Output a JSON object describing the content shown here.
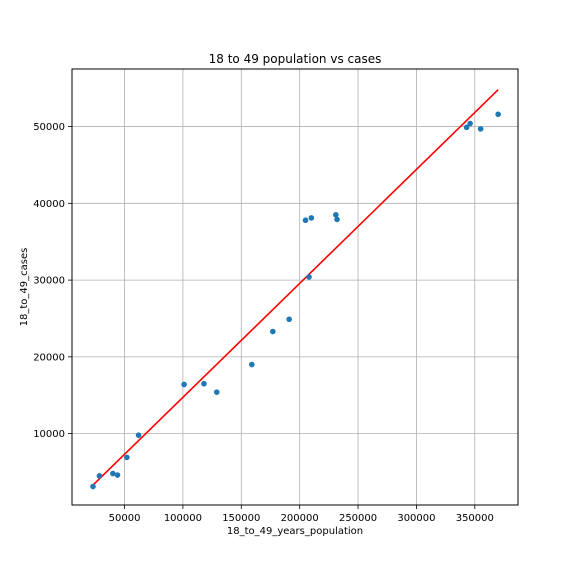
{
  "chart_data": {
    "type": "scatter",
    "title": "18 to 49 population vs cases",
    "xlabel": "18_to_49_years_population",
    "ylabel": "18_to_49_cases",
    "xlim": [
      5000,
      387000
    ],
    "ylim": [
      700,
      57500
    ],
    "xticks": [
      50000,
      100000,
      150000,
      200000,
      250000,
      300000,
      350000
    ],
    "yticks": [
      10000,
      20000,
      30000,
      40000,
      50000
    ],
    "grid": true,
    "point_color": "#1f77b4",
    "line_color": "#ff0000",
    "points": [
      {
        "x": 23000,
        "y": 3100
      },
      {
        "x": 28500,
        "y": 4500
      },
      {
        "x": 40000,
        "y": 4800
      },
      {
        "x": 44000,
        "y": 4600
      },
      {
        "x": 52000,
        "y": 6900
      },
      {
        "x": 62000,
        "y": 9800
      },
      {
        "x": 101000,
        "y": 16400
      },
      {
        "x": 118000,
        "y": 16500
      },
      {
        "x": 129000,
        "y": 15400
      },
      {
        "x": 159000,
        "y": 19000
      },
      {
        "x": 177000,
        "y": 23300
      },
      {
        "x": 191000,
        "y": 24900
      },
      {
        "x": 205000,
        "y": 37800
      },
      {
        "x": 208000,
        "y": 30400
      },
      {
        "x": 210000,
        "y": 38100
      },
      {
        "x": 231000,
        "y": 38500
      },
      {
        "x": 232000,
        "y": 37900
      },
      {
        "x": 343000,
        "y": 49900
      },
      {
        "x": 346000,
        "y": 50400
      },
      {
        "x": 355000,
        "y": 49700
      },
      {
        "x": 370000,
        "y": 51600
      }
    ],
    "fit_line": {
      "x": [
        23000,
        370000
      ],
      "y": [
        3300,
        54800
      ]
    }
  }
}
